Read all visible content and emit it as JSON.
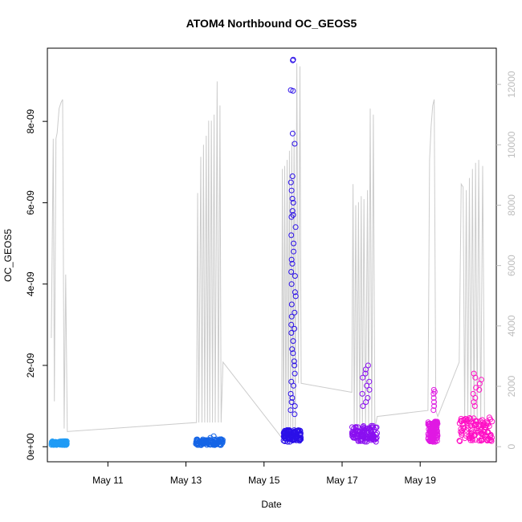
{
  "chart_data": {
    "type": "scatter",
    "title": "ATOM4 Northbound OC_GEOS5",
    "xlabel": "Date",
    "ylabel": "OC_GEOS5",
    "y_ticks": [
      "0e+00",
      "2e-09",
      "4e-09",
      "6e-09",
      "8e-09"
    ],
    "y_tick_values": [
      0,
      2e-09,
      4e-09,
      6e-09,
      8e-09
    ],
    "y2_ticks": [
      "0",
      "2000",
      "4000",
      "6000",
      "8000",
      "10000",
      "12000"
    ],
    "y2_tick_values": [
      0,
      2000,
      4000,
      6000,
      8000,
      10000,
      12000
    ],
    "x_ticks": [
      "May 11",
      "May 13",
      "May 15",
      "May 17",
      "May 19"
    ],
    "x_tick_values": [
      11,
      13,
      15,
      17,
      19
    ],
    "xlim": [
      9.45,
      20.95
    ],
    "ylim": [
      -3.7e-10,
      9.8e-09
    ],
    "y2lim": [
      -500,
      13200
    ],
    "grid": false,
    "colors": {
      "flight1": "#1f9bf5",
      "flight2": "#1565e6",
      "flight3": "#2b10e8",
      "flight4": "#8a0ff0",
      "flight5": "#e019e3",
      "flight6": "#ff0fc5",
      "altitude_line": "#cccccc",
      "secondary_axis": "#bdbdbd"
    },
    "series": [
      {
        "color": "#1f9bf5",
        "x_range": [
          9.55,
          9.95
        ],
        "y_base": 1e-10,
        "y_spread": 1e-10,
        "spikes": []
      },
      {
        "color": "#1565e6",
        "x_range": [
          13.25,
          13.95
        ],
        "y_base": 9e-11,
        "y_spread": 1.5e-10,
        "spikes": [
          2.6e-10,
          2.2e-10
        ]
      },
      {
        "color": "#2b10e8",
        "x_range": [
          15.5,
          15.95
        ],
        "y_base": 3e-10,
        "y_spread": 3e-10,
        "spikes": [
          9.5e-09,
          9.52e-09,
          8.75e-09,
          8.77e-09,
          7.7e-09,
          7.45e-09,
          6.65e-09,
          6.5e-09,
          6.3e-09,
          6.1e-09,
          6e-09,
          5.8e-09,
          5.7e-09,
          5.65e-09,
          5.4e-09,
          5.2e-09,
          5e-09,
          4.8e-09,
          4.6e-09,
          4.5e-09,
          4.3e-09,
          4.2e-09,
          4e-09,
          3.8e-09,
          3.7e-09,
          3.5e-09,
          3.3e-09,
          3.2e-09,
          3e-09,
          2.9e-09,
          2.8e-09,
          2.6e-09,
          2.4e-09,
          2.3e-09,
          2.1e-09,
          2e-09,
          1.8e-09,
          1.6e-09,
          1.5e-09,
          1.3e-09,
          1.2e-09,
          1.1e-09,
          1e-09,
          9e-10,
          8e-10
        ]
      },
      {
        "color": "#8a0ff0",
        "x_range": [
          17.25,
          17.9
        ],
        "y_base": 3e-10,
        "y_spread": 4e-10,
        "spikes": [
          2e-09,
          1.9e-09,
          1.8e-09,
          1.7e-09,
          1.6e-09,
          1.5e-09,
          1.4e-09,
          1.3e-09,
          1.2e-09,
          1.1e-09,
          1e-09
        ]
      },
      {
        "color": "#e019e3",
        "x_range": [
          19.2,
          19.45
        ],
        "y_base": 3e-10,
        "y_spread": 5e-10,
        "spikes": [
          1.4e-09,
          1.35e-09,
          1.3e-09,
          1.2e-09,
          1.1e-09,
          1e-09,
          9e-10
        ]
      },
      {
        "color": "#ff0fc5",
        "x_range": [
          20.0,
          20.85
        ],
        "y_base": 3e-10,
        "y_spread": 6e-10,
        "spikes": [
          1.8e-09,
          1.7e-09,
          1.65e-09,
          1.55e-09,
          1.45e-09,
          1.4e-09,
          1.3e-09,
          1.2e-09,
          1.1e-09,
          1e-09
        ]
      }
    ],
    "altitude_line": [
      [
        9.55,
        3600
      ],
      [
        9.6,
        10200
      ],
      [
        9.63,
        1500
      ],
      [
        9.67,
        10200
      ],
      [
        9.7,
        10400
      ],
      [
        9.75,
        11200
      ],
      [
        9.8,
        11400
      ],
      [
        9.84,
        11500
      ],
      [
        9.88,
        600
      ],
      [
        9.92,
        5700
      ],
      [
        9.96,
        500
      ],
      [
        13.27,
        800
      ],
      [
        13.3,
        8400
      ],
      [
        13.33,
        800
      ],
      [
        13.38,
        9600
      ],
      [
        13.41,
        800
      ],
      [
        13.45,
        10000
      ],
      [
        13.48,
        800
      ],
      [
        13.52,
        10300
      ],
      [
        13.55,
        800
      ],
      [
        13.58,
        10800
      ],
      [
        13.61,
        800
      ],
      [
        13.65,
        10800
      ],
      [
        13.68,
        800
      ],
      [
        13.72,
        11000
      ],
      [
        13.75,
        800
      ],
      [
        13.8,
        12100
      ],
      [
        13.83,
        800
      ],
      [
        13.87,
        11300
      ],
      [
        13.9,
        800
      ],
      [
        13.95,
        2800
      ],
      [
        15.45,
        300
      ],
      [
        15.47,
        9200
      ],
      [
        15.5,
        300
      ],
      [
        15.53,
        9300
      ],
      [
        15.56,
        300
      ],
      [
        15.59,
        9500
      ],
      [
        15.62,
        300
      ],
      [
        15.65,
        9800
      ],
      [
        15.68,
        300
      ],
      [
        15.71,
        10100
      ],
      [
        15.74,
        300
      ],
      [
        15.77,
        10500
      ],
      [
        15.8,
        300
      ],
      [
        15.84,
        12700
      ],
      [
        15.88,
        2100
      ],
      [
        15.92,
        12600
      ],
      [
        15.95,
        2100
      ],
      [
        17.25,
        1800
      ],
      [
        17.28,
        8700
      ],
      [
        17.31,
        600
      ],
      [
        17.35,
        8000
      ],
      [
        17.38,
        600
      ],
      [
        17.42,
        8100
      ],
      [
        17.45,
        600
      ],
      [
        17.49,
        8300
      ],
      [
        17.52,
        600
      ],
      [
        17.56,
        8200
      ],
      [
        17.6,
        600
      ],
      [
        17.65,
        8500
      ],
      [
        17.68,
        600
      ],
      [
        17.72,
        11200
      ],
      [
        17.76,
        600
      ],
      [
        17.8,
        11000
      ],
      [
        17.84,
        600
      ],
      [
        17.9,
        1000
      ],
      [
        19.2,
        1200
      ],
      [
        19.24,
        9500
      ],
      [
        19.28,
        10600
      ],
      [
        19.32,
        11300
      ],
      [
        19.36,
        11500
      ],
      [
        19.4,
        1200
      ],
      [
        19.45,
        1000
      ],
      [
        20.0,
        2800
      ],
      [
        20.05,
        8700
      ],
      [
        20.1,
        8600
      ],
      [
        20.14,
        800
      ],
      [
        20.18,
        8500
      ],
      [
        20.22,
        800
      ],
      [
        20.26,
        8900
      ],
      [
        20.3,
        800
      ],
      [
        20.34,
        9200
      ],
      [
        20.38,
        800
      ],
      [
        20.42,
        9400
      ],
      [
        20.46,
        800
      ],
      [
        20.5,
        9500
      ],
      [
        20.55,
        800
      ],
      [
        20.6,
        9300
      ],
      [
        20.65,
        800
      ]
    ]
  }
}
